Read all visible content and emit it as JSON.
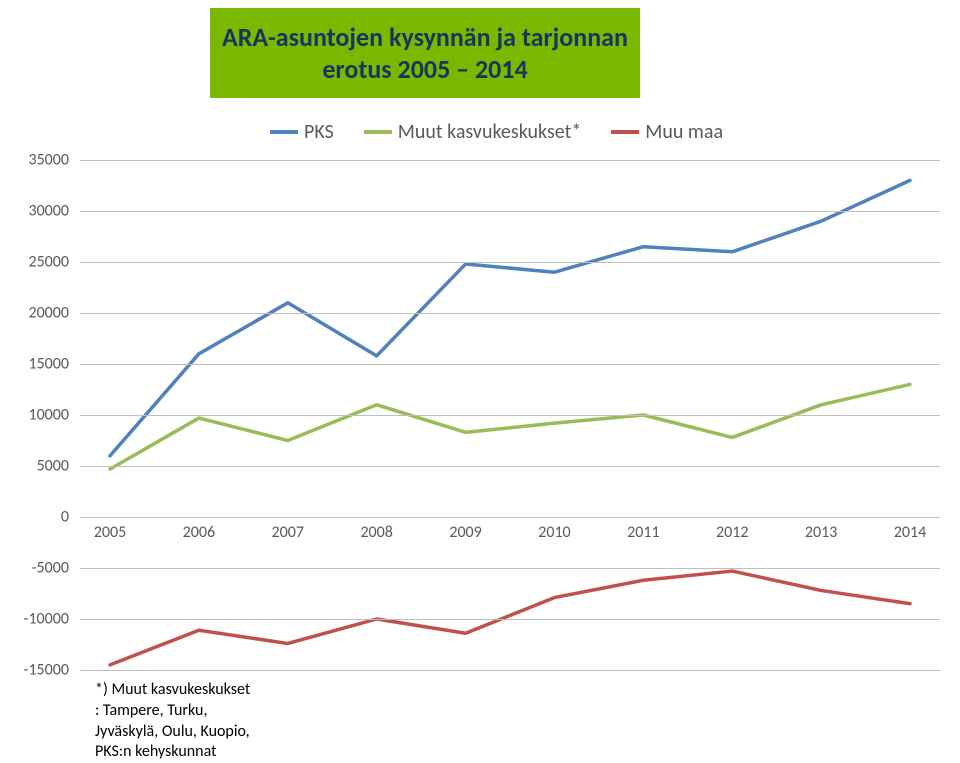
{
  "title": "ARA-asuntojen kysynnän ja tarjonnan erotus 2005 – 2014",
  "title_fontsize": 26,
  "title_color": "#17365d",
  "title_bg": "#7ab800",
  "legend": {
    "items": [
      {
        "label": "PKS",
        "color": "#4f81bd"
      },
      {
        "label": "Muut kasvukeskukset*",
        "color": "#9bbb59"
      },
      {
        "label": "Muu maa",
        "color": "#c0504d"
      }
    ],
    "fontsize": 20,
    "text_color": "#595959"
  },
  "chart": {
    "type": "line",
    "background_color": "#ffffff",
    "grid_color": "#bfbfbf",
    "line_width": 3.5,
    "x": {
      "categories": [
        "2005",
        "2006",
        "2007",
        "2008",
        "2009",
        "2010",
        "2011",
        "2012",
        "2013",
        "2014"
      ],
      "fontsize": 16,
      "color": "#595959"
    },
    "y": {
      "min": -15000,
      "max": 35000,
      "step": 5000,
      "fontsize": 16,
      "color": "#595959"
    },
    "series": [
      {
        "name": "PKS",
        "color": "#4f81bd",
        "values": [
          6000,
          16000,
          21000,
          15800,
          24800,
          24000,
          26500,
          26000,
          29000,
          33000
        ]
      },
      {
        "name": "Muut kasvukeskukset*",
        "color": "#9bbb59",
        "values": [
          4700,
          9700,
          7500,
          11000,
          8300,
          9200,
          10000,
          7800,
          11000,
          13000
        ]
      },
      {
        "name": "Muu maa",
        "color": "#c0504d",
        "values": [
          -14500,
          -11100,
          -12400,
          -10000,
          -11400,
          -7900,
          -6200,
          -5300,
          -7200,
          -8500
        ]
      }
    ]
  },
  "footnote": {
    "line1": "*) Muut kasvukeskukset",
    "line2": ": Tampere, Turku,",
    "line3": "Jyväskylä, Oulu, Kuopio,",
    "line4": "PKS:n kehyskunnat",
    "fontsize": 16,
    "color": "#000000"
  }
}
